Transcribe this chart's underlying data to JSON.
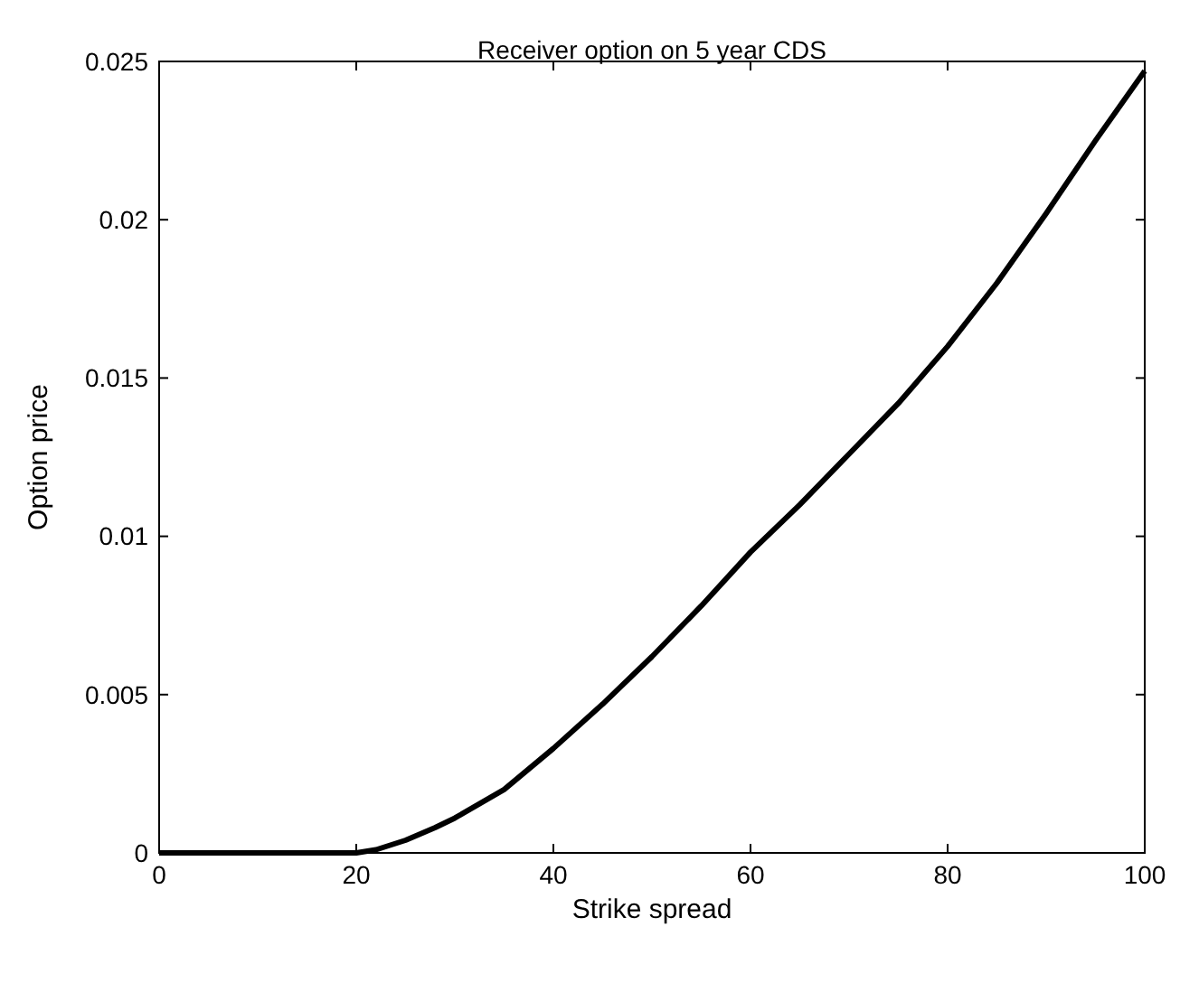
{
  "chart_data": {
    "type": "line",
    "title": "Receiver option on 5 year CDS",
    "xlabel": "Strike spread",
    "ylabel": "Option price",
    "x": [
      0,
      10,
      18,
      20,
      22,
      25,
      28,
      30,
      35,
      40,
      45,
      50,
      55,
      60,
      65,
      70,
      75,
      80,
      85,
      90,
      95,
      100
    ],
    "series": [
      {
        "color": "#000000",
        "values": [
          0,
          0,
          0,
          0,
          0.0001,
          0.0004,
          0.0008,
          0.0011,
          0.002,
          0.0033,
          0.0047,
          0.0062,
          0.0078,
          0.0095,
          0.011,
          0.0126,
          0.0142,
          0.016,
          0.018,
          0.0202,
          0.0225,
          0.0247
        ]
      }
    ],
    "xlim": [
      0,
      100
    ],
    "xticks": [
      0,
      20,
      40,
      60,
      80,
      100
    ],
    "ylim": [
      0,
      0.025
    ],
    "yticks": [
      0,
      0.005,
      0.01,
      0.015,
      0.02,
      0.025
    ],
    "grid": false,
    "line_style": "solid"
  }
}
